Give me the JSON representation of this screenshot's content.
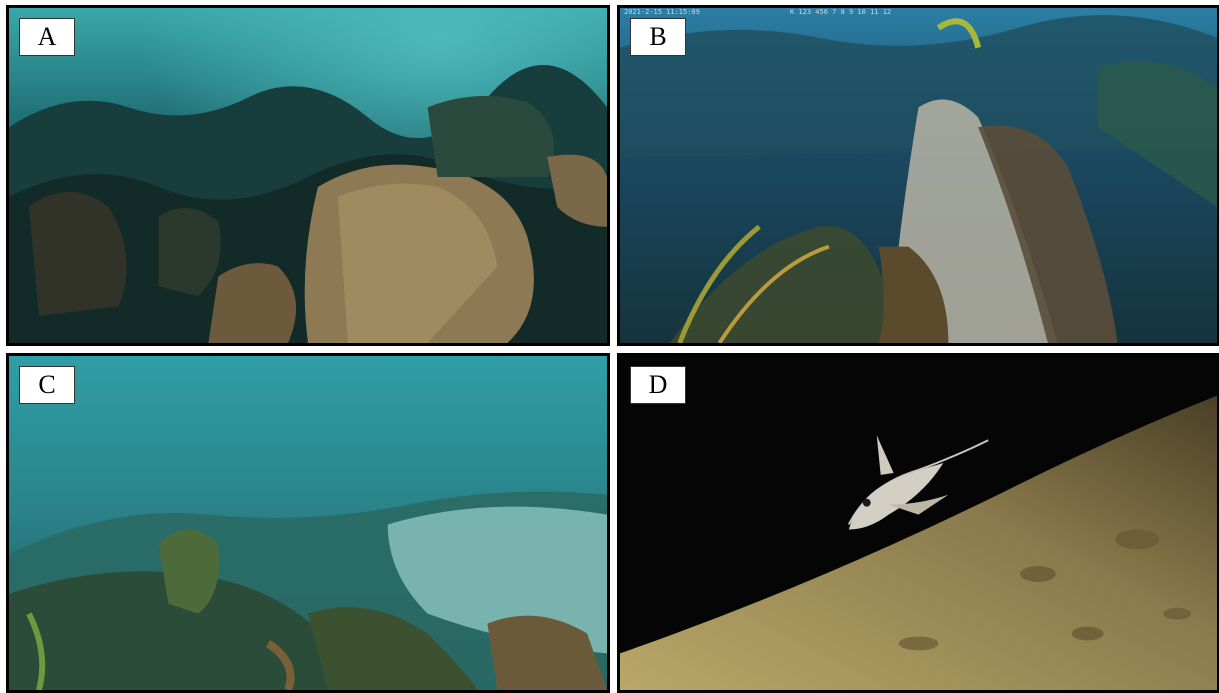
{
  "panels": [
    {
      "id": "A",
      "label": "A"
    },
    {
      "id": "B",
      "label": "B",
      "overlay_left": "2021-2-15 11:15:09",
      "overlay_right": "K 123 456 7 8 9 10 11 12"
    },
    {
      "id": "C",
      "label": "C"
    },
    {
      "id": "D",
      "label": "D"
    }
  ],
  "colors": {
    "border": "#000000",
    "water_a": "#1f6b73",
    "water_b": "#1a5e78",
    "water_c": "#2e8c92",
    "dark_d": "#050505",
    "sand_d": "#8a7a4c"
  }
}
